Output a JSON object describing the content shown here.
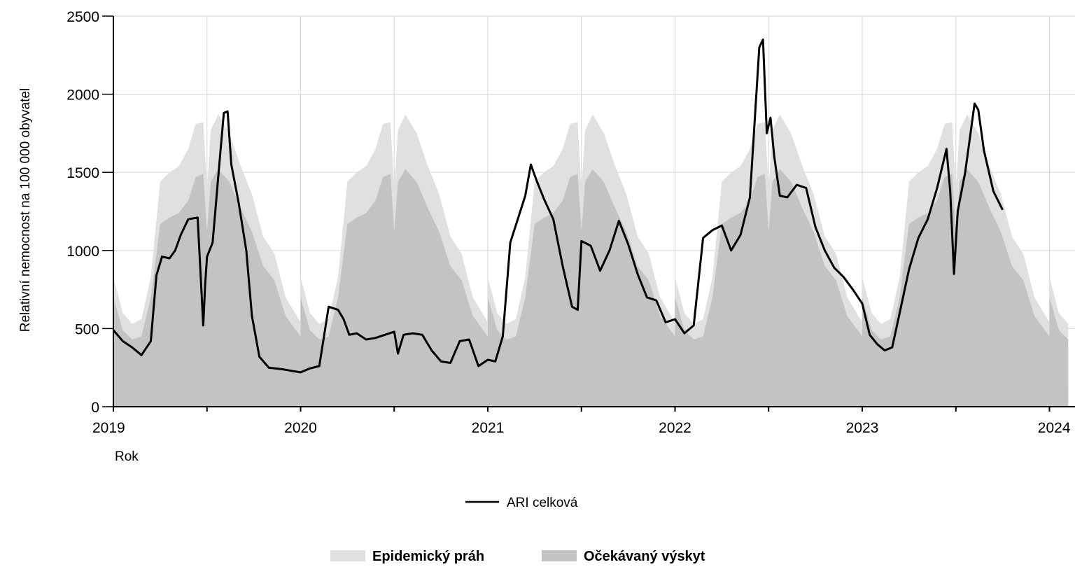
{
  "chart_data": {
    "type": "line",
    "xlabel": "Rok",
    "ylabel": "Relativní nemocnost na 100 000 obyvatel",
    "ylim": [
      0,
      2500
    ],
    "xlim": [
      2019.0,
      2024.15
    ],
    "yticks": [
      "0",
      "500",
      "1000",
      "1500",
      "2000",
      "2500"
    ],
    "xticks": [
      "2019",
      "2020",
      "2021",
      "2022",
      "2023",
      "2024"
    ],
    "grid": true,
    "legend_position": "bottom",
    "colors": {
      "threshold": "#e0e0e0",
      "expected": "#c3c3c3",
      "ari": "#000000",
      "grid": "#dcdcdc"
    },
    "series": [
      {
        "name": "ARI celková",
        "kind": "line",
        "color": "#000000",
        "x": [
          2019.0,
          2019.05,
          2019.1,
          2019.15,
          2019.2,
          2019.23,
          2019.26,
          2019.3,
          2019.33,
          2019.36,
          2019.4,
          2019.45,
          2019.48,
          2019.49,
          2019.5,
          2019.53,
          2019.56,
          2019.59,
          2019.61,
          2019.63,
          2019.67,
          2019.71,
          2019.74,
          2019.78,
          2019.83,
          2019.9,
          2019.95,
          2020.0,
          2020.05,
          2020.1,
          2020.15,
          2020.2,
          2020.23,
          2020.26,
          2020.3,
          2020.35,
          2020.4,
          2020.45,
          2020.5,
          2020.52,
          2020.55,
          2020.6,
          2020.65,
          2020.7,
          2020.75,
          2020.8,
          2020.85,
          2020.9,
          2020.95,
          2021.0,
          2021.04,
          2021.08,
          2021.12,
          2021.16,
          2021.2,
          2021.23,
          2021.26,
          2021.3,
          2021.35,
          2021.4,
          2021.45,
          2021.48,
          2021.5,
          2021.55,
          2021.6,
          2021.65,
          2021.7,
          2021.75,
          2021.8,
          2021.85,
          2021.9,
          2021.95,
          2022.0,
          2022.05,
          2022.1,
          2022.15,
          2022.2,
          2022.25,
          2022.3,
          2022.35,
          2022.4,
          2022.45,
          2022.47,
          2022.49,
          2022.51,
          2022.53,
          2022.56,
          2022.6,
          2022.65,
          2022.7,
          2022.75,
          2022.8,
          2022.85,
          2022.9,
          2022.95,
          2023.0,
          2023.04,
          2023.08,
          2023.12,
          2023.16,
          2023.2,
          2023.25,
          2023.3,
          2023.35,
          2023.4,
          2023.45,
          2023.47,
          2023.49,
          2023.51,
          2023.55,
          2023.6,
          2023.62,
          2023.65,
          2023.7,
          2023.75
        ],
        "values": [
          490,
          420,
          380,
          330,
          420,
          840,
          960,
          950,
          1000,
          1100,
          1200,
          1210,
          520,
          780,
          960,
          1050,
          1470,
          1880,
          1890,
          1550,
          1300,
          1000,
          580,
          320,
          250,
          240,
          230,
          220,
          245,
          260,
          640,
          620,
          560,
          460,
          470,
          430,
          440,
          460,
          480,
          340,
          460,
          470,
          460,
          360,
          290,
          280,
          420,
          430,
          260,
          300,
          290,
          450,
          1050,
          1200,
          1350,
          1550,
          1450,
          1330,
          1200,
          900,
          640,
          620,
          1060,
          1030,
          870,
          1000,
          1190,
          1040,
          850,
          700,
          680,
          540,
          560,
          470,
          520,
          1080,
          1130,
          1160,
          1000,
          1100,
          1340,
          2300,
          2350,
          1750,
          1850,
          1600,
          1350,
          1340,
          1420,
          1400,
          1150,
          1000,
          890,
          830,
          750,
          660,
          460,
          400,
          360,
          380,
          600,
          880,
          1080,
          1200,
          1400,
          1650,
          1380,
          850,
          1250,
          1500,
          1940,
          1900,
          1640,
          1380,
          1260
        ]
      },
      {
        "name": "Epidemický práh",
        "kind": "area",
        "color": "#e0e0e0",
        "x": [
          2019.0,
          2019.05,
          2019.1,
          2019.15,
          2019.2,
          2019.25,
          2019.3,
          2019.35,
          2019.4,
          2019.44,
          2019.48,
          2019.5,
          2019.52,
          2019.56,
          2019.62,
          2019.68,
          2019.74,
          2019.8,
          2019.86,
          2019.92,
          2020.0
        ],
        "values": [
          830,
          600,
          530,
          560,
          830,
          1440,
          1500,
          1540,
          1650,
          1810,
          1820,
          1390,
          1770,
          1870,
          1750,
          1540,
          1360,
          1090,
          980,
          700,
          540
        ]
      },
      {
        "name": "Očekávaný výskyt",
        "kind": "area",
        "color": "#c3c3c3",
        "x": [
          2019.0,
          2019.05,
          2019.1,
          2019.15,
          2019.2,
          2019.25,
          2019.3,
          2019.35,
          2019.4,
          2019.44,
          2019.48,
          2019.5,
          2019.52,
          2019.56,
          2019.62,
          2019.68,
          2019.74,
          2019.8,
          2019.86,
          2019.92,
          2020.0
        ],
        "values": [
          700,
          490,
          430,
          450,
          700,
          1170,
          1210,
          1240,
          1320,
          1470,
          1490,
          1120,
          1440,
          1520,
          1440,
          1270,
          1120,
          900,
          810,
          580,
          450
        ]
      }
    ]
  },
  "legend": {
    "line_label": "ARI celková",
    "threshold_label": "Epidemický práh",
    "expected_label": "Očekávaný výskyt"
  }
}
